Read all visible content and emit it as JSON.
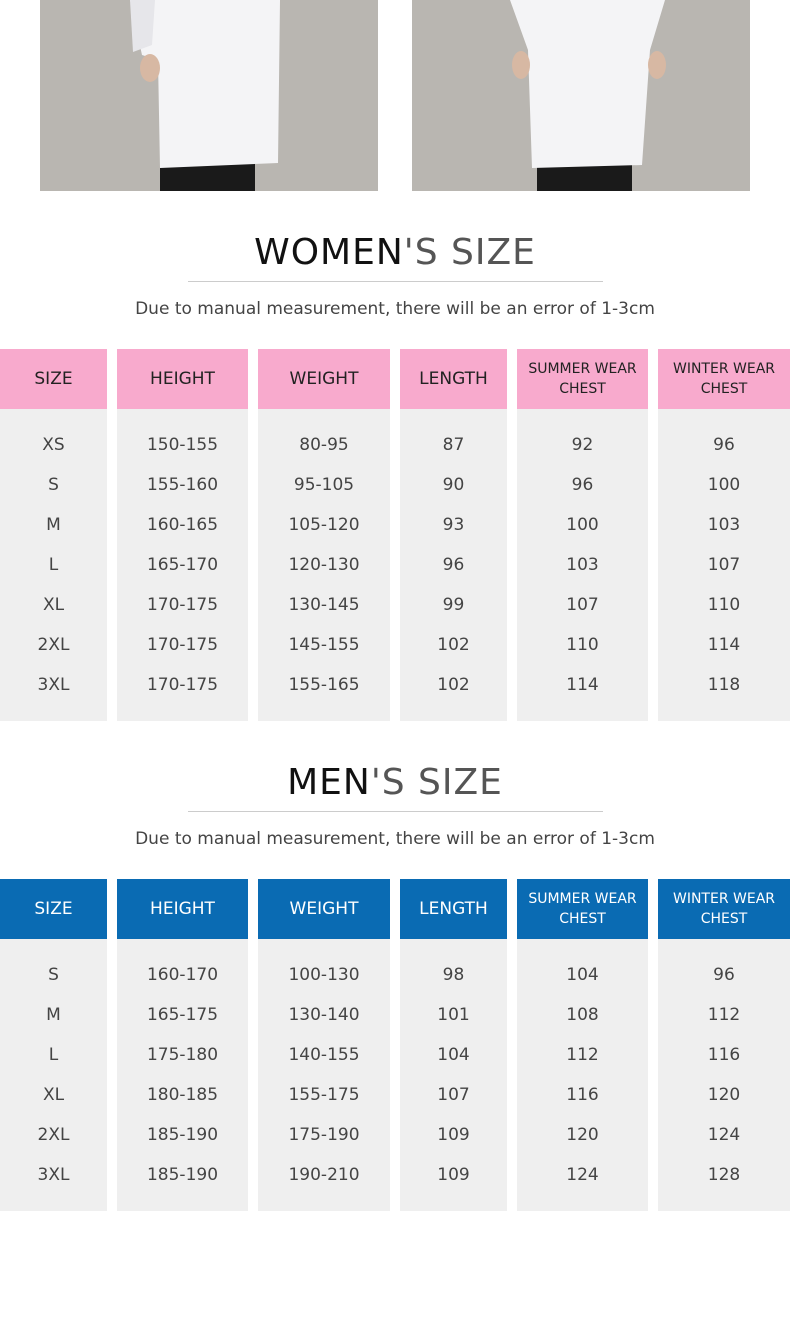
{
  "women": {
    "title_main": "WOMEN",
    "title_rest": "'S SIZE",
    "note": "Due to manual measurement, there will be an error of 1-3cm",
    "headers": [
      "SIZE",
      "HEIGHT",
      "WEIGHT",
      "LENGTH",
      "SUMMER WEAR CHEST",
      "WINTER WEAR CHEST"
    ],
    "rows": [
      [
        "XS",
        "150-155",
        "80-95",
        "87",
        "92",
        "96"
      ],
      [
        "S",
        "155-160",
        "95-105",
        "90",
        "96",
        "100"
      ],
      [
        "M",
        "160-165",
        "105-120",
        "93",
        "100",
        "103"
      ],
      [
        "L",
        "165-170",
        "120-130",
        "96",
        "103",
        "107"
      ],
      [
        "XL",
        "170-175",
        "130-145",
        "99",
        "107",
        "110"
      ],
      [
        "2XL",
        "170-175",
        "145-155",
        "102",
        "110",
        "114"
      ],
      [
        "3XL",
        "170-175",
        "155-165",
        "102",
        "114",
        "118"
      ]
    ]
  },
  "men": {
    "title_main": "MEN",
    "title_rest": "'S SIZE",
    "note": "Due to manual measurement, there will be an error of 1-3cm",
    "headers": [
      "SIZE",
      "HEIGHT",
      "WEIGHT",
      "LENGTH",
      "SUMMER WEAR CHEST",
      "WINTER WEAR CHEST"
    ],
    "rows": [
      [
        "S",
        "160-170",
        "100-130",
        "98",
        "104",
        "96"
      ],
      [
        "M",
        "165-175",
        "130-140",
        "101",
        "108",
        "112"
      ],
      [
        "L",
        "175-180",
        "140-155",
        "104",
        "112",
        "116"
      ],
      [
        "XL",
        "180-185",
        "155-175",
        "107",
        "116",
        "120"
      ],
      [
        "2XL",
        "185-190",
        "175-190",
        "109",
        "120",
        "124"
      ],
      [
        "3XL",
        "185-190",
        "190-210",
        "109",
        "124",
        "128"
      ]
    ]
  }
}
